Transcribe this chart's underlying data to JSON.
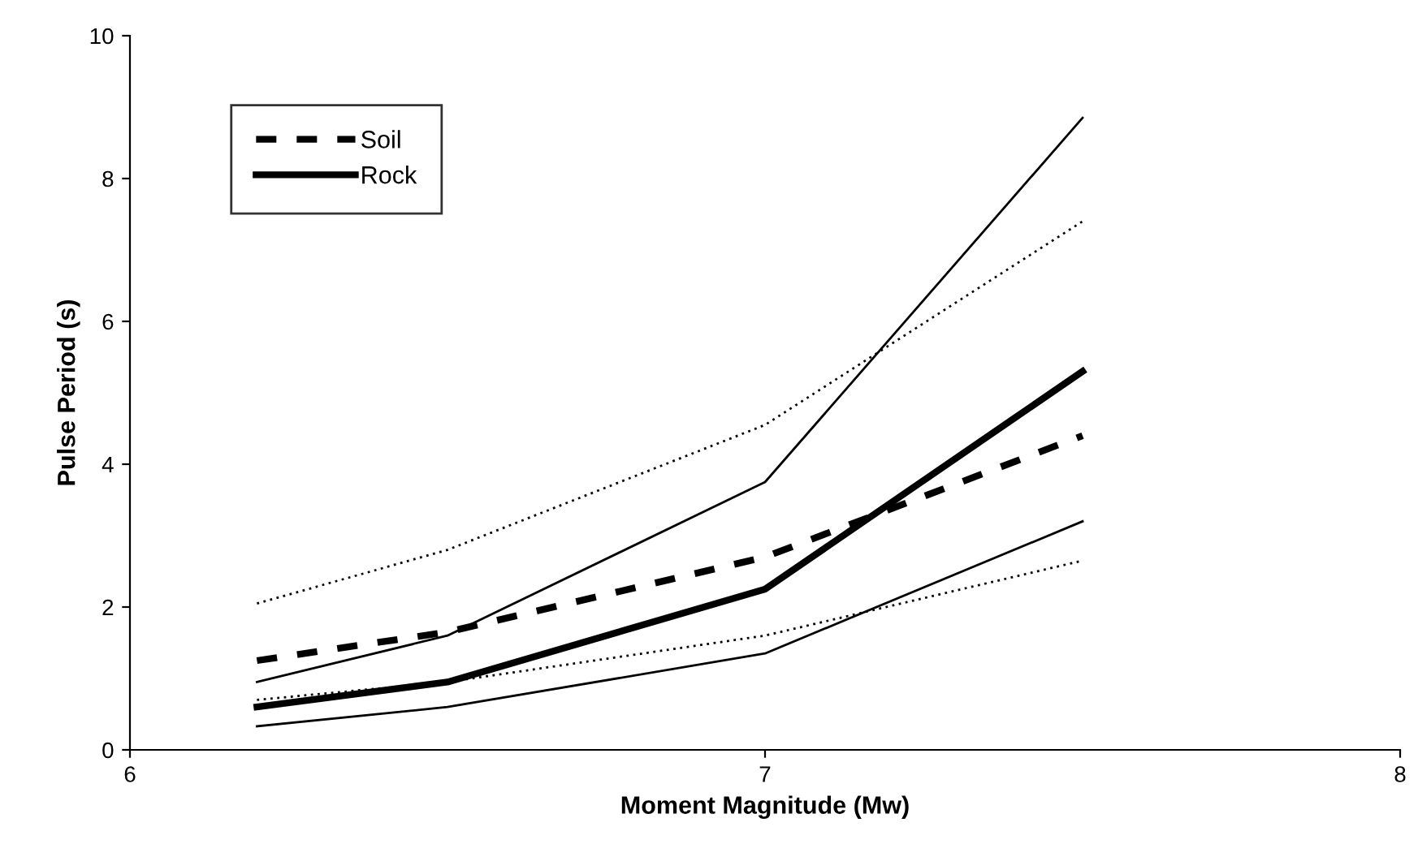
{
  "chart_data": {
    "type": "line",
    "xlabel": "Moment Magnitude (Mw)",
    "ylabel": "Pulse Period (s)",
    "x": [
      6.2,
      6.5,
      7,
      7.5
    ],
    "series": [
      {
        "name": "Soil",
        "color": "#000000",
        "line_style": "dashed",
        "values": [
          1.25,
          1.65,
          2.7,
          4.4
        ]
      },
      {
        "name": "Rock",
        "color": "#000000",
        "line_style": "solid",
        "values": [
          0.6,
          0.95,
          2.25,
          5.3
        ]
      },
      {
        "color": "#000000",
        "line_style": "dotted",
        "values": [
          2.05,
          2.8,
          4.55,
          7.4
        ]
      },
      {
        "color": "#000000",
        "line_style": "dotted",
        "values": [
          0.7,
          0.95,
          1.6,
          2.65
        ]
      },
      {
        "color": "#000000",
        "line_style": "solid",
        "values": [
          0.95,
          1.6,
          3.75,
          8.85
        ]
      },
      {
        "color": "#000000",
        "line_style": "solid",
        "values": [
          0.33,
          0.6,
          1.35,
          3.2
        ]
      }
    ],
    "xlim": [
      6,
      8
    ],
    "xticks": [
      6,
      7,
      8
    ],
    "ylim": [
      0,
      10
    ],
    "yticks": [
      0,
      2,
      4,
      6,
      8,
      10
    ],
    "grid": false,
    "legend": "top left",
    "marker": "none"
  }
}
